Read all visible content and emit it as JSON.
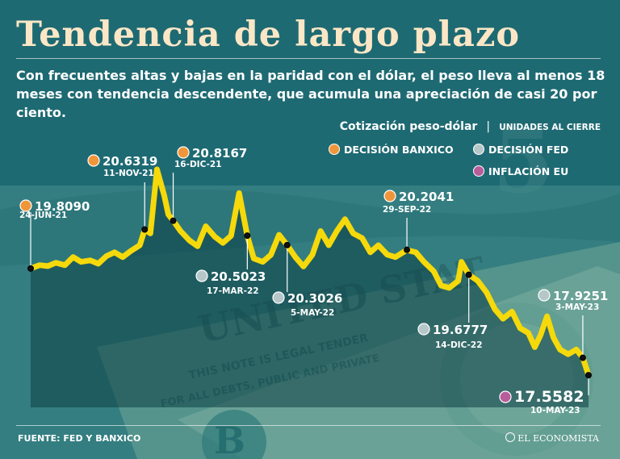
{
  "header": {
    "title": "Tendencia de largo plazo",
    "subtitle": "Con frecuentes altas y bajas en la paridad con el dólar, el peso lleva al menos 18 meses con tendencia descendente, que acumula una apreciación de casi 20 por ciento."
  },
  "legend": {
    "title": "Cotización peso-dólar",
    "separator": "|",
    "unit": "UNIDADES AL CIERRE",
    "items": [
      {
        "label": "DECISIÓN BANXICO",
        "color": "#f0963a"
      },
      {
        "label": "DECISIÓN FED",
        "color": "#b5c7c8"
      },
      {
        "label": "INFLACIÓN EU",
        "color": "#b85c9a"
      }
    ]
  },
  "chart_data": {
    "type": "line",
    "series_color": "#f5d90a",
    "grid": false,
    "x_range": [
      "2021-06-24",
      "2023-05-10"
    ],
    "series": [
      {
        "values": [
          [
            "2021-06-24",
            19.81
          ],
          [
            "2021-07-05",
            19.88
          ],
          [
            "2021-07-15",
            19.86
          ],
          [
            "2021-07-25",
            19.93
          ],
          [
            "2021-08-05",
            19.88
          ],
          [
            "2021-08-15",
            20.05
          ],
          [
            "2021-08-25",
            19.95
          ],
          [
            "2021-09-05",
            19.98
          ],
          [
            "2021-09-15",
            19.91
          ],
          [
            "2021-09-25",
            20.07
          ],
          [
            "2021-10-05",
            20.15
          ],
          [
            "2021-10-15",
            20.05
          ],
          [
            "2021-10-25",
            20.18
          ],
          [
            "2021-11-05",
            20.3
          ],
          [
            "2021-11-11",
            20.63
          ],
          [
            "2021-11-18",
            20.55
          ],
          [
            "2021-11-26",
            21.9
          ],
          [
            "2021-12-05",
            21.35
          ],
          [
            "2021-12-10",
            20.95
          ],
          [
            "2021-12-16",
            20.82
          ],
          [
            "2021-12-25",
            20.6
          ],
          [
            "2022-01-05",
            20.4
          ],
          [
            "2022-01-15",
            20.28
          ],
          [
            "2022-01-25",
            20.7
          ],
          [
            "2022-02-05",
            20.48
          ],
          [
            "2022-02-15",
            20.35
          ],
          [
            "2022-02-25",
            20.5
          ],
          [
            "2022-03-07",
            21.4
          ],
          [
            "2022-03-17",
            20.5
          ],
          [
            "2022-03-25",
            20.02
          ],
          [
            "2022-04-05",
            19.95
          ],
          [
            "2022-04-15",
            20.1
          ],
          [
            "2022-04-25",
            20.52
          ],
          [
            "2022-05-05",
            20.3
          ],
          [
            "2022-05-15",
            20.05
          ],
          [
            "2022-05-25",
            19.85
          ],
          [
            "2022-06-05",
            20.1
          ],
          [
            "2022-06-15",
            20.6
          ],
          [
            "2022-06-25",
            20.3
          ],
          [
            "2022-07-05",
            20.6
          ],
          [
            "2022-07-15",
            20.85
          ],
          [
            "2022-07-25",
            20.55
          ],
          [
            "2022-08-05",
            20.45
          ],
          [
            "2022-08-15",
            20.15
          ],
          [
            "2022-08-25",
            20.3
          ],
          [
            "2022-09-05",
            20.1
          ],
          [
            "2022-09-15",
            20.05
          ],
          [
            "2022-09-29",
            20.2
          ],
          [
            "2022-10-10",
            20.15
          ],
          [
            "2022-10-20",
            19.95
          ],
          [
            "2022-11-01",
            19.75
          ],
          [
            "2022-11-10",
            19.45
          ],
          [
            "2022-11-20",
            19.4
          ],
          [
            "2022-12-01",
            19.55
          ],
          [
            "2022-12-05",
            19.95
          ],
          [
            "2022-12-14",
            19.68
          ],
          [
            "2022-12-25",
            19.55
          ],
          [
            "2023-01-05",
            19.3
          ],
          [
            "2023-01-15",
            18.95
          ],
          [
            "2023-01-25",
            18.75
          ],
          [
            "2023-02-05",
            18.9
          ],
          [
            "2023-02-15",
            18.55
          ],
          [
            "2023-02-25",
            18.45
          ],
          [
            "2023-03-05",
            18.15
          ],
          [
            "2023-03-12",
            18.4
          ],
          [
            "2023-03-20",
            18.8
          ],
          [
            "2023-03-28",
            18.35
          ],
          [
            "2023-04-05",
            18.1
          ],
          [
            "2023-04-15",
            18.0
          ],
          [
            "2023-04-25",
            18.1
          ],
          [
            "2023-05-03",
            17.93
          ],
          [
            "2023-05-10",
            17.56
          ]
        ]
      }
    ],
    "annotations": [
      {
        "date": "2021-06-24",
        "value": "19.8090",
        "label": "24-JUN-21",
        "type": "banxico"
      },
      {
        "date": "2021-11-11",
        "value": "20.6319",
        "label": "11-NOV-21",
        "type": "banxico"
      },
      {
        "date": "2021-12-16",
        "value": "20.8167",
        "label": "16-DIC-21",
        "type": "banxico"
      },
      {
        "date": "2022-03-17",
        "value": "20.5023",
        "label": "17-MAR-22",
        "type": "fed"
      },
      {
        "date": "2022-05-05",
        "value": "20.3026",
        "label": "5-MAY-22",
        "type": "fed"
      },
      {
        "date": "2022-09-29",
        "value": "20.2041",
        "label": "29-SEP-22",
        "type": "banxico"
      },
      {
        "date": "2022-12-14",
        "value": "19.6777",
        "label": "14-DIC-22",
        "type": "fed"
      },
      {
        "date": "2023-05-03",
        "value": "17.9251",
        "label": "3-MAY-23",
        "type": "fed"
      },
      {
        "date": "2023-05-10",
        "value": "17.5582",
        "label": "10-MAY-23",
        "type": "inflacion"
      }
    ]
  },
  "footer": {
    "source": "FUENTE: FED Y BANXICO",
    "brand": "EL ECONOMISTA"
  }
}
